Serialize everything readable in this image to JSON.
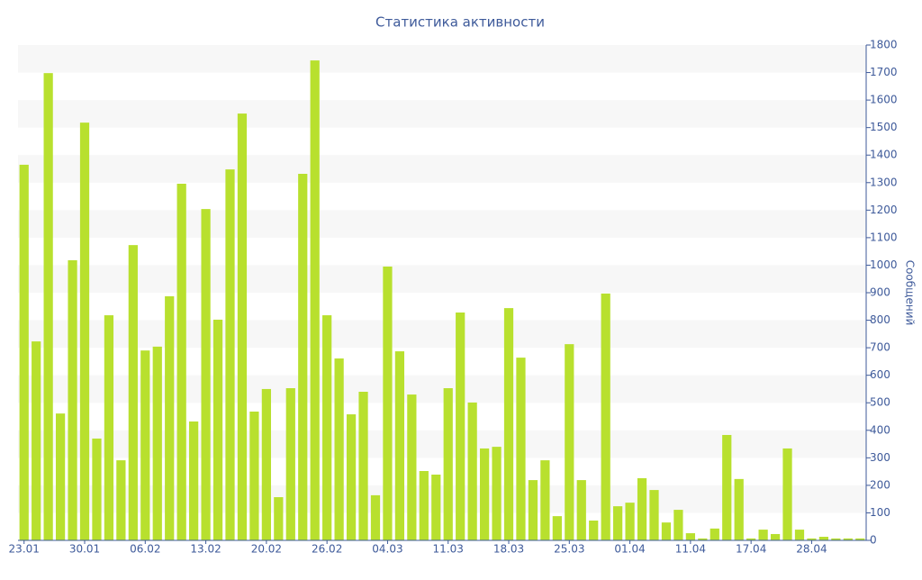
{
  "chart_data": {
    "type": "bar",
    "title": "Статистика активности",
    "y_label": "Сообщений",
    "categories": [
      "23.01",
      null,
      null,
      null,
      null,
      "30.01",
      null,
      null,
      null,
      null,
      "06.02",
      null,
      null,
      null,
      null,
      "13.02",
      null,
      null,
      null,
      null,
      "20.02",
      null,
      null,
      null,
      null,
      "26.02",
      null,
      null,
      null,
      null,
      "04.03",
      null,
      null,
      null,
      null,
      "11.03",
      null,
      null,
      null,
      null,
      "18.03",
      null,
      null,
      null,
      null,
      "25.03",
      null,
      null,
      null,
      null,
      "01.04",
      null,
      null,
      null,
      null,
      "11.04",
      null,
      null,
      null,
      null,
      "17.04",
      null,
      null,
      null,
      null,
      "28.04",
      null,
      null,
      null,
      null
    ],
    "values": [
      1365,
      723,
      1698,
      461,
      1018,
      1518,
      370,
      818,
      291,
      1073,
      690,
      704,
      887,
      1296,
      432,
      1204,
      802,
      1348,
      1551,
      468,
      550,
      157,
      553,
      1332,
      1744,
      818,
      661,
      458,
      540,
      164,
      995,
      687,
      530,
      252,
      239,
      553,
      828,
      501,
      334,
      340,
      844,
      664,
      219,
      291,
      88,
      713,
      219,
      72,
      897,
      124,
      137,
      226,
      183,
      65,
      111,
      26,
      7,
      43,
      383,
      223,
      7,
      39,
      23,
      334,
      39,
      7,
      13,
      7,
      7,
      7
    ],
    "color": "#b8e02e",
    "ylim": [
      0,
      1800
    ],
    "yticks": [
      0,
      100,
      200,
      300,
      400,
      500,
      600,
      700,
      800,
      900,
      1000,
      1100,
      1200,
      1300,
      1400,
      1500,
      1600,
      1700,
      1800
    ],
    "grid": "alternate-bands",
    "y_axis_side": "right"
  }
}
